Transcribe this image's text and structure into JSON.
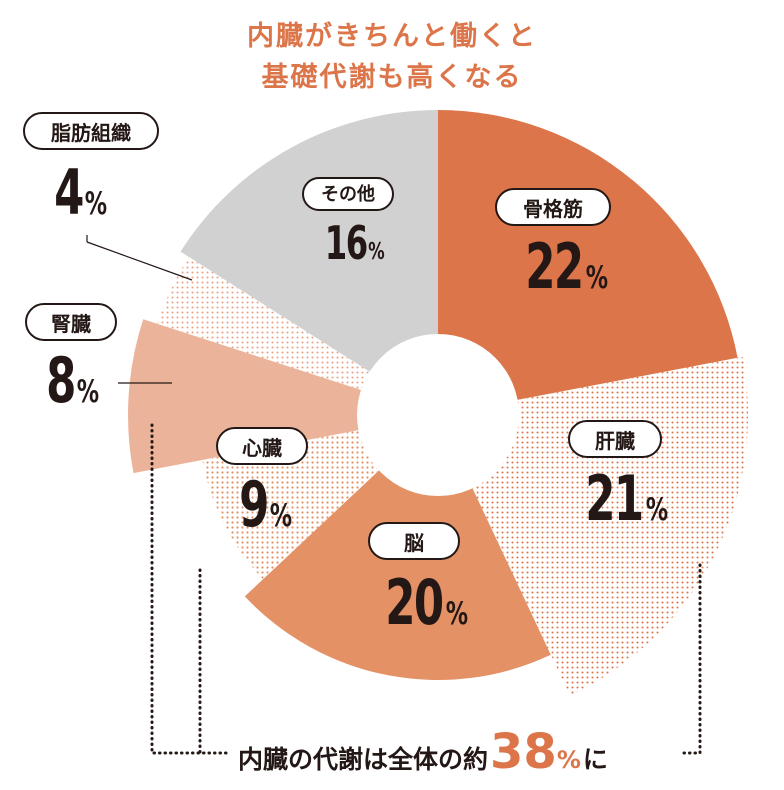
{
  "title": {
    "line1": "内臓がきちんと働くと",
    "line2": "基礎代謝も高くなる"
  },
  "chart_data": {
    "type": "pie",
    "unit": "%",
    "slices": [
      {
        "label": "骨格筋",
        "value": 22,
        "color": "#dc7549",
        "pattern": "solid"
      },
      {
        "label": "肝臓",
        "value": 21,
        "color": "#dc7549",
        "pattern": "dots"
      },
      {
        "label": "脳",
        "value": 20,
        "color": "#e39165",
        "pattern": "solid"
      },
      {
        "label": "心臓",
        "value": 9,
        "color": "#e39165",
        "pattern": "dots"
      },
      {
        "label": "腎臓",
        "value": 8,
        "color": "#ebb399",
        "pattern": "solid"
      },
      {
        "label": "脂肪組織",
        "value": 4,
        "color": "#e8a283",
        "pattern": "dots"
      },
      {
        "label": "その他",
        "value": 16,
        "color": "#d1d1d1",
        "pattern": "solid"
      }
    ]
  },
  "summary": {
    "prefix": "内臓の代謝は全体の約",
    "value": "38",
    "unit": "%",
    "suffix": "に"
  },
  "colors": {
    "title": "#dc7549",
    "text": "#231815",
    "accent": "#dc7549"
  }
}
